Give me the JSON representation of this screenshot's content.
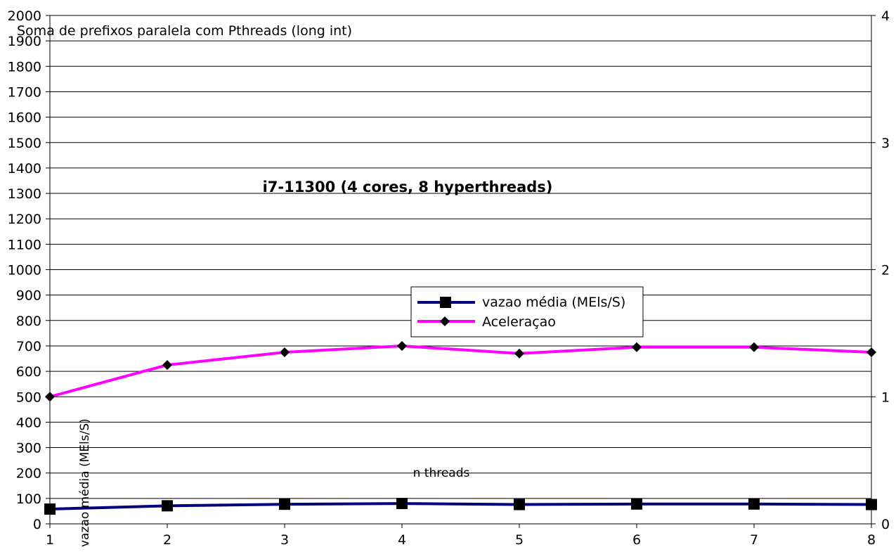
{
  "chart_data": {
    "type": "line",
    "title": "Soma de prefixos paralela com Pthreads (long int)",
    "subtitle": "i7-11300 (4 cores, 8 hyperthreads)",
    "xlabel": "n threads",
    "ylabel": "vazao média (MEls/S)",
    "x": [
      1,
      2,
      3,
      4,
      5,
      6,
      7,
      8
    ],
    "x_tick_labels": [
      "1",
      "2",
      "3",
      "4",
      "5",
      "6",
      "7",
      "8"
    ],
    "ylim": [
      0,
      2000
    ],
    "y_ticks": [
      0,
      100,
      200,
      300,
      400,
      500,
      600,
      700,
      800,
      900,
      1000,
      1100,
      1200,
      1300,
      1400,
      1500,
      1600,
      1700,
      1800,
      1900,
      2000
    ],
    "y2lim": [
      0,
      4
    ],
    "y2_ticks": [
      0,
      1,
      2,
      3,
      4
    ],
    "grid": true,
    "legend_position": "center",
    "series": [
      {
        "name": "vazao média (MEls/S)",
        "axis": "left",
        "color": "#000080",
        "marker": "square",
        "values": [
          58,
          71,
          77,
          80,
          76,
          78,
          78,
          76
        ]
      },
      {
        "name": "Aceleraçao",
        "axis": "right",
        "color": "#ff00ff",
        "marker": "diamond",
        "values": [
          1.0,
          1.25,
          1.35,
          1.4,
          1.34,
          1.39,
          1.39,
          1.35
        ]
      }
    ]
  }
}
